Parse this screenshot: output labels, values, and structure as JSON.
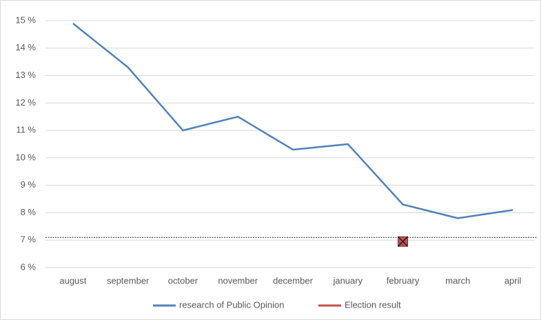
{
  "chart_data": {
    "type": "line",
    "categories": [
      "august",
      "september",
      "october",
      "november",
      "december",
      "january",
      "february",
      "march",
      "april"
    ],
    "series": [
      {
        "name": "research of Public Opinion",
        "color": "#4f81bd",
        "values": [
          14.9,
          13.3,
          11.0,
          11.5,
          10.3,
          10.5,
          8.3,
          7.8,
          8.1
        ]
      },
      {
        "name": "Election result",
        "color": "#c0504d",
        "values": [
          null,
          null,
          null,
          null,
          null,
          null,
          6.95,
          null,
          null
        ]
      }
    ],
    "reference_line": 7.1,
    "ylim": [
      6,
      15
    ],
    "yticks": [
      {
        "value": 6,
        "label": "6 %"
      },
      {
        "value": 7,
        "label": "7 %"
      },
      {
        "value": 8,
        "label": "8 %"
      },
      {
        "value": 9,
        "label": "9 %"
      },
      {
        "value": 10,
        "label": "10 %"
      },
      {
        "value": 11,
        "label": "11 %"
      },
      {
        "value": 12,
        "label": "12 %"
      },
      {
        "value": 13,
        "label": "13 %"
      },
      {
        "value": 14,
        "label": "14 %"
      },
      {
        "value": 15,
        "label": "15 %"
      }
    ],
    "grid": true,
    "legend": "bottom"
  }
}
